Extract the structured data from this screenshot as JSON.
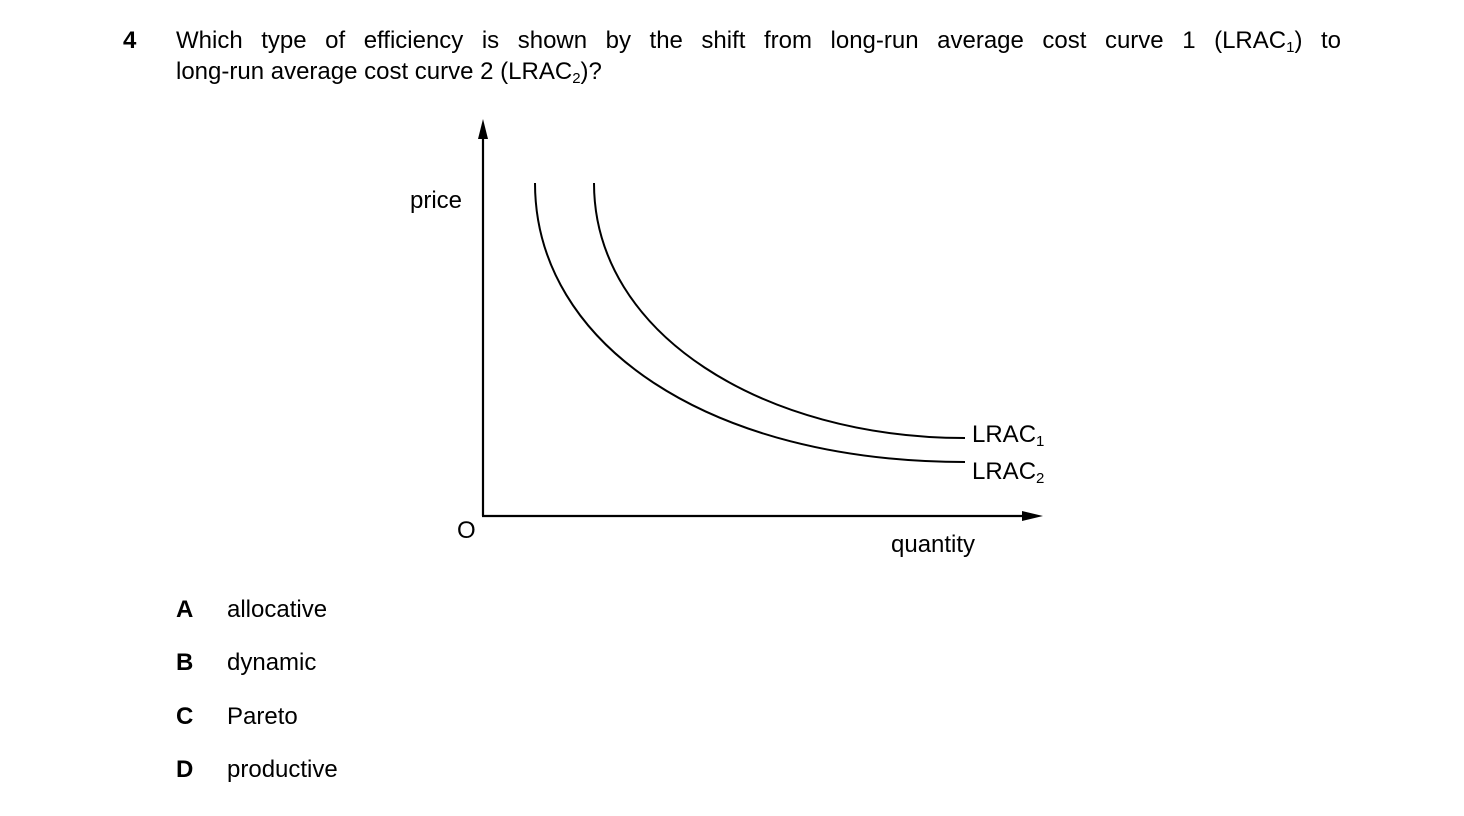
{
  "question": {
    "number": "4",
    "line1_a": "Which type of efficiency is shown by the shift from long-run average cost curve 1 (LRAC",
    "line1_sub": "1",
    "line1_b": ") to",
    "line2_a": "long-run average cost curve 2 (LRAC",
    "line2_sub": "2",
    "line2_b": ")?"
  },
  "diagram": {
    "y_axis_label": "price",
    "x_axis_label": "quantity",
    "origin_label": "O",
    "curves": [
      {
        "name": "LRAC",
        "sub": "1"
      },
      {
        "name": "LRAC",
        "sub": "2"
      }
    ]
  },
  "options": [
    {
      "letter": "A",
      "text": "allocative"
    },
    {
      "letter": "B",
      "text": "dynamic"
    },
    {
      "letter": "C",
      "text": "Pareto"
    },
    {
      "letter": "D",
      "text": "productive"
    }
  ]
}
